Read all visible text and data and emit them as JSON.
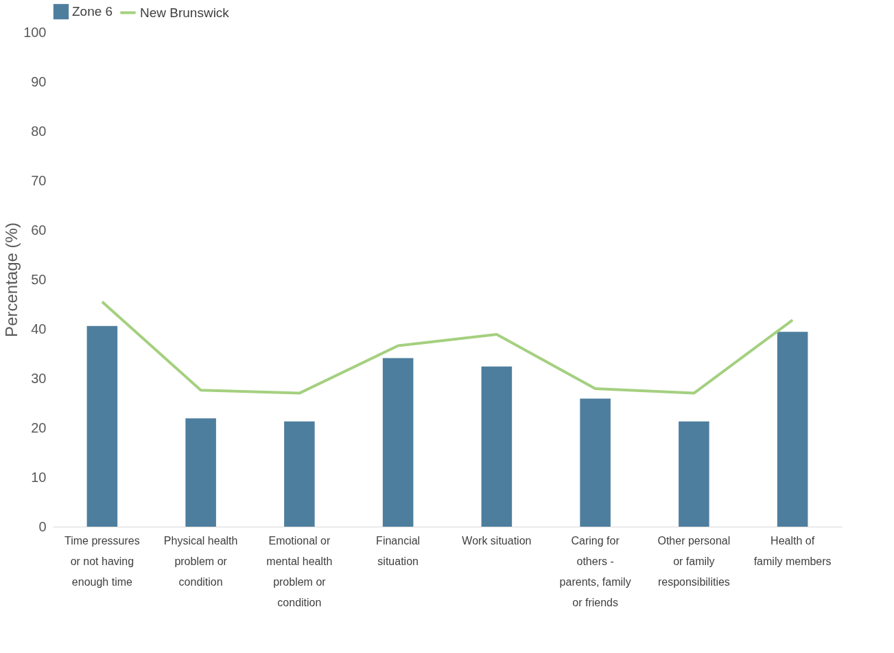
{
  "chart_data": {
    "type": "bar",
    "ylabel": "Percentage (%)",
    "categories": [
      "Time pressures or not having enough time",
      "Physical health problem or condition",
      "Emotional or mental health problem or condition",
      "Financial situation",
      "Work situation",
      "Caring for others - parents, family or friends",
      "Other personal or family responsibilities",
      "Health of family members"
    ],
    "series": [
      {
        "name": "Zone 6",
        "color": "#4e7e9e",
        "values": [
          40.6,
          21.9,
          21.3,
          34.1,
          32.4,
          25.9,
          21.3,
          39.4
        ]
      },
      {
        "name": "New Brunswick",
        "type": "line",
        "color": "#a4d07f",
        "values": [
          45.5,
          27.6,
          27.0,
          36.6,
          38.9,
          27.9,
          27.0,
          41.8
        ]
      }
    ],
    "ylim": [
      0,
      100
    ],
    "yticks": [
      0,
      10,
      20,
      30,
      40,
      50,
      60,
      70,
      80,
      90,
      100
    ],
    "grid": false,
    "legend": "top",
    "line_style": "solid",
    "marker": "none"
  }
}
